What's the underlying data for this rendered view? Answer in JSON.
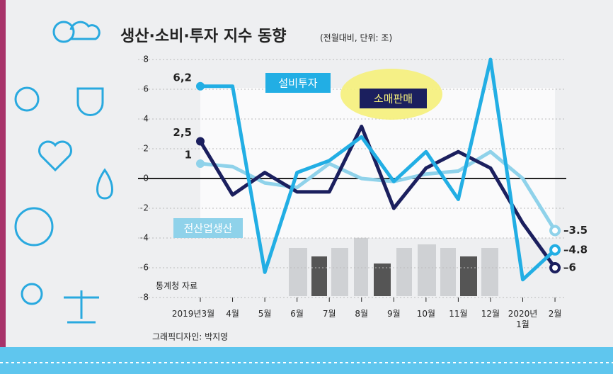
{
  "chart_data": {
    "type": "line",
    "title": "생산·소비·투자 지수 동향",
    "subtitle": "(전월대비, 단위: 조)",
    "categories": [
      "2019년3월",
      "4월",
      "5월",
      "6월",
      "7월",
      "8월",
      "9월",
      "10월",
      "11월",
      "12월",
      "2020년 1월",
      "2월"
    ],
    "ylim": [
      -8,
      8
    ],
    "yticks": [
      -8,
      -6,
      -4,
      -2,
      0,
      2,
      4,
      6,
      8
    ],
    "series": [
      {
        "name": "설비투자",
        "color": "#22aee4",
        "values": [
          6.2,
          6.2,
          -6.3,
          0.4,
          1.2,
          2.8,
          -0.2,
          1.8,
          -1.4,
          8,
          -6.8,
          -4.8
        ],
        "value_labels": [
          "6,2",
          null,
          null,
          null,
          null,
          null,
          null,
          null,
          null,
          null,
          null,
          "–4.8"
        ]
      },
      {
        "name": "소매판매",
        "color": "#1b1f5e",
        "values": [
          2.5,
          -1.1,
          0.4,
          -0.9,
          -0.9,
          3.5,
          -2.0,
          0.7,
          1.8,
          0.7,
          -3.0,
          -6
        ],
        "value_labels": [
          "2,5",
          null,
          null,
          null,
          null,
          null,
          null,
          null,
          null,
          null,
          null,
          "–6"
        ]
      },
      {
        "name": "전산업생산",
        "color": "#8fd2ea",
        "values": [
          1,
          0.8,
          -0.3,
          -0.6,
          1.0,
          0.0,
          -0.2,
          0.3,
          0.5,
          1.8,
          0.0,
          -3.5
        ],
        "value_labels": [
          "1",
          null,
          null,
          null,
          null,
          null,
          null,
          null,
          null,
          null,
          null,
          "–3.5"
        ]
      }
    ],
    "source": "통계청 자료",
    "credit": "그래픽디자인: 박지영"
  }
}
